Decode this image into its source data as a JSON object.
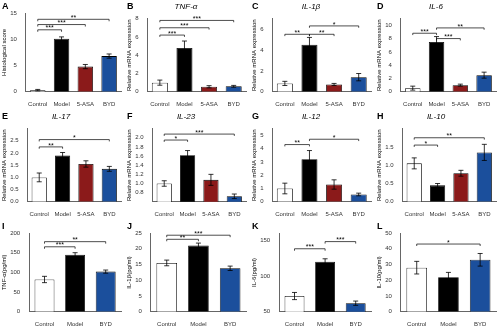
{
  "chart_data": [
    {
      "type": "bar",
      "panel": "A",
      "ylabel": "Histological score",
      "categories": [
        "Control",
        "Model",
        "5-ASA",
        "BYD"
      ],
      "values": [
        0.3,
        10.1,
        4.8,
        6.8
      ],
      "errors": [
        0.15,
        0.35,
        0.4,
        0.4
      ],
      "colors": [
        "white",
        "black",
        "#8B1A1A",
        "#1B4F9C"
      ],
      "ylim": [
        0,
        15
      ],
      "yticks": [
        0,
        5,
        10,
        15
      ],
      "grid": false,
      "annotations": [
        {
          "from": "Control",
          "to": "Model",
          "y": 11.8,
          "label": "***"
        },
        {
          "from": "Control",
          "to": "5-ASA",
          "y": 12.8,
          "label": "***"
        },
        {
          "from": "Control",
          "to": "BYD",
          "y": 13.8,
          "label": "**"
        }
      ]
    },
    {
      "type": "bar",
      "panel": "B",
      "title": "TNF-α",
      "ylabel": "Relative mRNA expression",
      "categories": [
        "Control",
        "Model",
        "5-ASA",
        "BYD"
      ],
      "values": [
        1.0,
        4.8,
        0.55,
        0.6
      ],
      "errors": [
        0.28,
        0.75,
        0.12,
        0.1
      ],
      "colors": [
        "white",
        "black",
        "#8B1A1A",
        "#1B4F9C"
      ],
      "ylim": [
        0,
        8
      ],
      "yticks": [
        0,
        2,
        4,
        6,
        8
      ],
      "grid": false,
      "annotations": [
        {
          "from": "Control",
          "to": "Model",
          "y": 6.2,
          "label": "***"
        },
        {
          "from": "Control",
          "to": "5-ASA",
          "y": 7.0,
          "label": "***"
        },
        {
          "from": "Control",
          "to": "BYD",
          "y": 7.8,
          "label": "***"
        }
      ]
    },
    {
      "type": "bar",
      "panel": "C",
      "title": "IL-1β",
      "ylabel": "Relative mRNA expression",
      "categories": [
        "Control",
        "Model",
        "5-ASA",
        "BYD"
      ],
      "values": [
        0.8,
        4.5,
        0.7,
        1.4
      ],
      "errors": [
        0.2,
        0.7,
        0.1,
        0.35
      ],
      "colors": [
        "white",
        "black",
        "#8B1A1A",
        "#1B4F9C"
      ],
      "ylim": [
        0,
        7
      ],
      "yticks": [
        0,
        2,
        4,
        6
      ],
      "grid": false,
      "annotations": [
        {
          "from": "Control",
          "to": "Model",
          "y": 5.5,
          "label": "**"
        },
        {
          "from": "Model",
          "to": "5-ASA",
          "y": 5.5,
          "label": "**"
        },
        {
          "from": "Model",
          "to": "BYD",
          "y": 6.3,
          "label": "*"
        }
      ]
    },
    {
      "type": "bar",
      "panel": "D",
      "title": "IL-6",
      "ylabel": "Relative mRNA expression",
      "categories": [
        "Control",
        "Model",
        "5-ASA",
        "BYD"
      ],
      "values": [
        0.55,
        7.5,
        1.0,
        2.5
      ],
      "errors": [
        0.3,
        0.8,
        0.15,
        0.45
      ],
      "colors": [
        "white",
        "black",
        "#8B1A1A",
        "#1B4F9C"
      ],
      "ylim": [
        0,
        11
      ],
      "yticks": [
        0,
        2,
        4,
        6,
        8,
        10
      ],
      "grid": false,
      "annotations": [
        {
          "from": "Control",
          "to": "Model",
          "y": 8.8,
          "label": "***"
        },
        {
          "from": "Model",
          "to": "5-ASA",
          "y": 8.0,
          "label": "***"
        },
        {
          "from": "Model",
          "to": "BYD",
          "y": 9.6,
          "label": "**"
        }
      ]
    },
    {
      "type": "bar",
      "panel": "E",
      "title": "IL-17",
      "ylabel": "Relative mRNA expression",
      "categories": [
        "Control",
        "Model",
        "5-ASA",
        "BYD"
      ],
      "values": [
        1.0,
        1.9,
        1.55,
        1.35
      ],
      "errors": [
        0.18,
        0.12,
        0.13,
        0.1
      ],
      "colors": [
        "white",
        "black",
        "#8B1A1A",
        "#1B4F9C"
      ],
      "ylim": [
        0,
        3.0
      ],
      "yticks": [
        {
          "value": 0,
          "label": "0.0"
        },
        0.5,
        {
          "value": 1,
          "label": "1.0"
        },
        1.5,
        {
          "value": 2,
          "label": "2.0"
        },
        2.5
      ],
      "grid": false,
      "annotations": [
        {
          "from": "Control",
          "to": "Model",
          "y": 2.25,
          "label": "**"
        },
        {
          "from": "Control",
          "to": "BYD",
          "y": 2.55,
          "label": "*"
        }
      ]
    },
    {
      "type": "bar",
      "panel": "F",
      "title": "IL-23",
      "ylabel": "Relative mRNA expression",
      "categories": [
        "Control",
        "Model",
        "5-ASA",
        "BYD"
      ],
      "values": [
        1.0,
        1.62,
        1.08,
        0.72
      ],
      "errors": [
        0.06,
        0.1,
        0.12,
        0.05
      ],
      "colors": [
        "white",
        "black",
        "#8B1A1A",
        "#1B4F9C"
      ],
      "ylim": [
        0.6,
        2.2
      ],
      "yticks": [
        0.8,
        {
          "value": 1,
          "label": "1.0"
        },
        1.2,
        1.4,
        1.6,
        1.8,
        {
          "value": 2,
          "label": "2.0"
        }
      ],
      "grid": false,
      "annotations": [
        {
          "from": "Control",
          "to": "Model",
          "y": 1.95,
          "label": "*"
        },
        {
          "from": "Control",
          "to": "BYD",
          "y": 2.08,
          "label": "***"
        }
      ]
    },
    {
      "type": "bar",
      "panel": "G",
      "title": "IL-12",
      "ylabel": "Relative mRNA expression",
      "categories": [
        "Control",
        "Model",
        "5-ASA",
        "BYD"
      ],
      "values": [
        1.0,
        3.2,
        1.3,
        0.55
      ],
      "errors": [
        0.4,
        0.65,
        0.35,
        0.1
      ],
      "colors": [
        "white",
        "black",
        "#8B1A1A",
        "#1B4F9C"
      ],
      "ylim": [
        0,
        5.5
      ],
      "yticks": [
        0,
        1,
        2,
        3,
        4,
        5
      ],
      "grid": false,
      "annotations": [
        {
          "from": "Control",
          "to": "Model",
          "y": 4.3,
          "label": "**"
        },
        {
          "from": "Model",
          "to": "BYD",
          "y": 4.7,
          "label": "*"
        }
      ]
    },
    {
      "type": "bar",
      "panel": "H",
      "title": "IL-10",
      "ylabel": "Relative mRNA expression",
      "categories": [
        "Control",
        "Model",
        "5-ASA",
        "BYD"
      ],
      "values": [
        1.05,
        0.45,
        0.78,
        1.35
      ],
      "errors": [
        0.15,
        0.05,
        0.08,
        0.22
      ],
      "colors": [
        "white",
        "black",
        "#8B1A1A",
        "#1B4F9C"
      ],
      "ylim": [
        0,
        2.0
      ],
      "yticks": [
        {
          "value": 0,
          "label": "0.0"
        },
        0.5,
        {
          "value": 1,
          "label": "1.0"
        },
        1.5
      ],
      "grid": false,
      "annotations": [
        {
          "from": "Control",
          "to": "Model",
          "y": 1.55,
          "label": "*"
        },
        {
          "from": "Control",
          "to": "BYD",
          "y": 1.75,
          "label": "**"
        }
      ]
    },
    {
      "type": "bar",
      "panel": "I",
      "ylabel": "TNF-α(pg/ml)",
      "categories": [
        "Control",
        "Model",
        "BYD"
      ],
      "values": [
        82,
        145,
        102
      ],
      "errors": [
        8,
        5,
        4
      ],
      "colors": [
        "white",
        "black",
        "#1B4F9C"
      ],
      "ylim": [
        0,
        200
      ],
      "yticks": [
        0,
        50,
        100,
        150,
        200
      ],
      "grid": false,
      "annotations": [
        {
          "from": "Control",
          "to": "Model",
          "y": 165,
          "label": "***"
        },
        {
          "from": "Control",
          "to": "BYD",
          "y": 178,
          "label": "**"
        }
      ]
    },
    {
      "type": "bar",
      "panel": "J",
      "ylabel": "IL-1β(pg/ml)",
      "categories": [
        "Control",
        "Model",
        "BYD"
      ],
      "values": [
        15.5,
        21.0,
        13.8
      ],
      "errors": [
        0.9,
        0.8,
        0.7
      ],
      "colors": [
        "white",
        "black",
        "#1B4F9C"
      ],
      "ylim": [
        0,
        25
      ],
      "yticks": [
        0,
        5,
        10,
        15,
        20,
        25
      ],
      "grid": false,
      "annotations": [
        {
          "from": "Control",
          "to": "Model",
          "y": 23.0,
          "label": "**"
        },
        {
          "from": "Control",
          "to": "BYD",
          "y": 24.3,
          "label": "***"
        }
      ]
    },
    {
      "type": "bar",
      "panel": "K",
      "ylabel": "IL-6(pg/ml)",
      "categories": [
        "Control",
        "Model",
        "BYD"
      ],
      "values": [
        72,
        120,
        62
      ],
      "errors": [
        5,
        4,
        3
      ],
      "colors": [
        "white",
        "black",
        "#1B4F9C"
      ],
      "ylim": [
        50,
        160
      ],
      "yticks": [
        50,
        100,
        150
      ],
      "grid": false,
      "annotations": [
        {
          "from": "Control",
          "to": "Model",
          "y": 138,
          "label": "***"
        },
        {
          "from": "Model",
          "to": "BYD",
          "y": 148,
          "label": "***"
        }
      ]
    },
    {
      "type": "bar",
      "panel": "L",
      "ylabel": "IL-10(pg/ml)",
      "categories": [
        "Control",
        "Model",
        "BYD"
      ],
      "values": [
        28,
        22,
        33
      ],
      "errors": [
        4,
        3,
        4
      ],
      "colors": [
        "white",
        "black",
        "#1B4F9C"
      ],
      "ylim": [
        0,
        50
      ],
      "yticks": [
        0,
        10,
        20,
        30,
        40,
        50
      ],
      "grid": false,
      "annotations": [
        {
          "from": "Control",
          "to": "BYD",
          "y": 43,
          "label": "*"
        }
      ]
    }
  ]
}
